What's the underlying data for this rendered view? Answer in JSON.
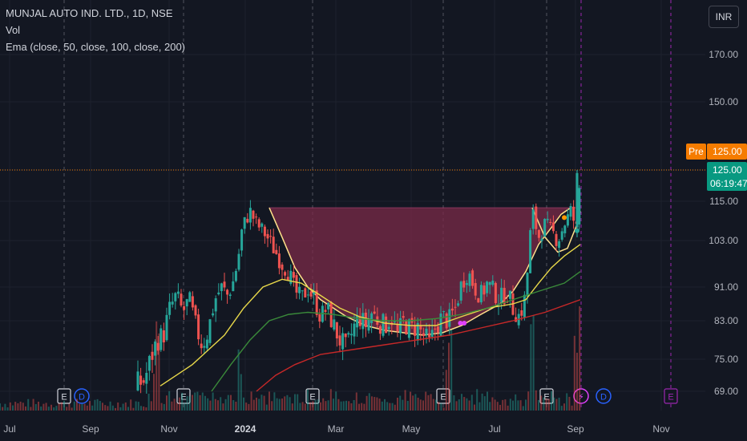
{
  "legend": {
    "title": "MUNJAL AUTO IND. LTD., 1D, NSE",
    "vol": "Vol",
    "ema": "Ema (close, 50, close, 100, close, 200)"
  },
  "currency": "INR",
  "badges": {
    "pre_label": "Pre",
    "pre_price": "125.00",
    "last_price": "125.00",
    "countdown": "06:19:47"
  },
  "colors": {
    "up": "#26a69a",
    "down": "#ef5350",
    "ema50": "#e8d84a",
    "ema100": "#3a8a3a",
    "ema200": "#c62828",
    "cup_fill": "#7a2a48",
    "pre_badge": "#f57c00",
    "last_badge": "#089981"
  },
  "chart_data": {
    "type": "candlestick",
    "y_ticks": [
      170,
      150,
      125,
      115,
      103,
      91,
      83,
      75,
      69
    ],
    "y_tick_labels": [
      "170.00",
      "150.00",
      "115.00",
      "103.00",
      "91.00",
      "83.00",
      "75.00",
      "69.00"
    ],
    "x_tick_labels": [
      "Jul",
      "Sep",
      "Nov",
      "2024",
      "Mar",
      "May",
      "Jul",
      "Sep",
      "Nov"
    ],
    "close_path": [
      [
        0.0,
        70
      ],
      [
        0.04,
        70
      ],
      [
        0.07,
        70
      ],
      [
        0.1,
        70
      ],
      [
        0.13,
        70
      ],
      [
        0.16,
        70
      ],
      [
        0.19,
        70
      ],
      [
        0.21,
        70
      ],
      [
        0.225,
        71
      ],
      [
        0.235,
        75
      ],
      [
        0.245,
        79
      ],
      [
        0.255,
        80
      ],
      [
        0.265,
        86
      ],
      [
        0.275,
        89
      ],
      [
        0.285,
        85
      ],
      [
        0.295,
        88
      ],
      [
        0.305,
        82
      ],
      [
        0.315,
        78
      ],
      [
        0.325,
        81
      ],
      [
        0.335,
        88
      ],
      [
        0.345,
        91
      ],
      [
        0.355,
        89
      ],
      [
        0.365,
        93
      ],
      [
        0.372,
        99
      ],
      [
        0.378,
        107
      ],
      [
        0.39,
        112
      ],
      [
        0.4,
        108
      ],
      [
        0.41,
        106
      ],
      [
        0.42,
        103
      ],
      [
        0.43,
        100
      ],
      [
        0.44,
        97
      ],
      [
        0.45,
        95
      ],
      [
        0.46,
        90
      ],
      [
        0.47,
        88
      ],
      [
        0.48,
        91
      ],
      [
        0.49,
        88
      ],
      [
        0.5,
        84
      ],
      [
        0.51,
        86
      ],
      [
        0.52,
        82
      ],
      [
        0.53,
        79
      ],
      [
        0.54,
        77
      ],
      [
        0.55,
        81
      ],
      [
        0.56,
        84
      ],
      [
        0.57,
        82
      ],
      [
        0.58,
        85
      ],
      [
        0.59,
        83
      ],
      [
        0.6,
        82
      ],
      [
        0.61,
        84
      ],
      [
        0.62,
        80
      ],
      [
        0.63,
        83
      ],
      [
        0.64,
        81
      ],
      [
        0.65,
        82
      ],
      [
        0.66,
        80
      ],
      [
        0.67,
        78
      ],
      [
        0.68,
        82
      ],
      [
        0.69,
        84
      ],
      [
        0.7,
        83
      ],
      [
        0.71,
        86
      ],
      [
        0.72,
        92
      ],
      [
        0.73,
        95
      ],
      [
        0.74,
        91
      ],
      [
        0.75,
        89
      ],
      [
        0.76,
        92
      ],
      [
        0.77,
        90
      ],
      [
        0.78,
        88
      ],
      [
        0.79,
        90
      ],
      [
        0.8,
        86
      ],
      [
        0.81,
        84
      ],
      [
        0.82,
        89
      ],
      [
        0.83,
        112
      ],
      [
        0.84,
        104
      ],
      [
        0.85,
        108
      ],
      [
        0.86,
        106
      ],
      [
        0.87,
        103
      ],
      [
        0.88,
        108
      ],
      [
        0.89,
        112
      ],
      [
        0.9,
        106
      ],
      [
        0.905,
        125
      ]
    ],
    "ema50_path": [
      [
        0.25,
        70
      ],
      [
        0.3,
        74
      ],
      [
        0.35,
        80
      ],
      [
        0.38,
        86
      ],
      [
        0.41,
        91
      ],
      [
        0.44,
        93
      ],
      [
        0.47,
        92
      ],
      [
        0.5,
        89
      ],
      [
        0.53,
        86
      ],
      [
        0.56,
        84
      ],
      [
        0.6,
        82.5
      ],
      [
        0.64,
        82
      ],
      [
        0.68,
        82
      ],
      [
        0.72,
        84
      ],
      [
        0.76,
        86
      ],
      [
        0.8,
        87
      ],
      [
        0.82,
        88
      ],
      [
        0.84,
        92
      ],
      [
        0.86,
        96
      ],
      [
        0.88,
        99
      ],
      [
        0.905,
        102
      ]
    ],
    "ema100_path": [
      [
        0.33,
        69
      ],
      [
        0.36,
        74
      ],
      [
        0.39,
        79
      ],
      [
        0.42,
        83
      ],
      [
        0.45,
        84.5
      ],
      [
        0.48,
        85
      ],
      [
        0.52,
        84.5
      ],
      [
        0.56,
        83.5
      ],
      [
        0.6,
        83
      ],
      [
        0.64,
        83
      ],
      [
        0.68,
        83.5
      ],
      [
        0.72,
        84.5
      ],
      [
        0.76,
        86
      ],
      [
        0.8,
        88
      ],
      [
        0.84,
        90
      ],
      [
        0.88,
        92
      ],
      [
        0.905,
        95
      ]
    ],
    "ema200_path": [
      [
        0.4,
        69
      ],
      [
        0.43,
        72
      ],
      [
        0.46,
        74
      ],
      [
        0.5,
        76
      ],
      [
        0.55,
        77
      ],
      [
        0.6,
        78
      ],
      [
        0.65,
        79
      ],
      [
        0.7,
        80
      ],
      [
        0.75,
        81.5
      ],
      [
        0.8,
        83
      ],
      [
        0.85,
        85
      ],
      [
        0.905,
        88
      ]
    ],
    "cup_curve": [
      [
        0.42,
        113
      ],
      [
        0.44,
        104
      ],
      [
        0.46,
        96
      ],
      [
        0.48,
        91
      ],
      [
        0.5,
        88
      ],
      [
        0.52,
        86
      ],
      [
        0.54,
        84
      ],
      [
        0.57,
        82
      ],
      [
        0.6,
        81
      ],
      [
        0.63,
        80.5
      ],
      [
        0.66,
        80
      ],
      [
        0.69,
        80.5
      ],
      [
        0.72,
        82
      ],
      [
        0.75,
        84.5
      ],
      [
        0.78,
        87
      ],
      [
        0.8,
        90
      ],
      [
        0.82,
        95
      ],
      [
        0.84,
        102
      ],
      [
        0.86,
        107
      ],
      [
        0.875,
        111
      ],
      [
        0.89,
        113
      ]
    ],
    "cup_rim": 113,
    "right_cup": [
      [
        0.83,
        113
      ],
      [
        0.85,
        104
      ],
      [
        0.87,
        100
      ],
      [
        0.885,
        101
      ],
      [
        0.9,
        108
      ],
      [
        0.905,
        112
      ]
    ],
    "volume_spikes": [
      0.245,
      0.375,
      0.7,
      0.83,
      0.9
    ]
  }
}
